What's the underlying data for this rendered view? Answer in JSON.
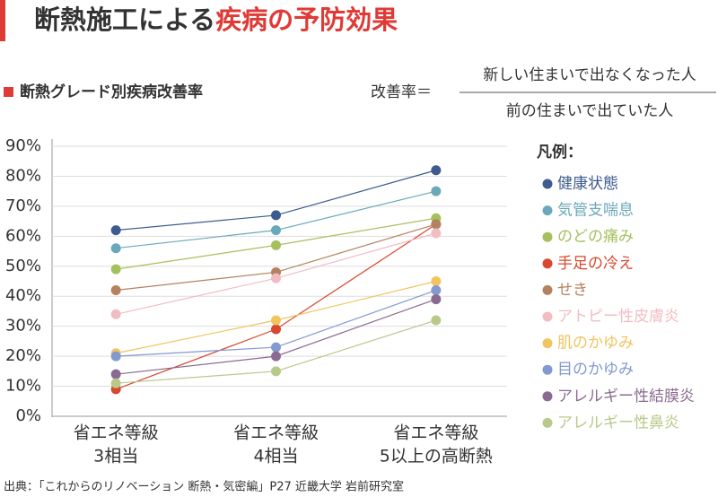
{
  "chart_data": {
    "type": "line",
    "title": [
      "断熱施工による",
      "疾病の予防効果"
    ],
    "subtitle": "断熱グレード別疾病改善率",
    "formula": {
      "label": "改善率＝",
      "numerator": "新しい住まいで出なくなった人",
      "denominator": "前の住まいで出ていた人"
    },
    "legend_title": "凡例：",
    "source": "出典：「これからのリノベーション 断熱・気密編」P27 近畿大学 岩前研究室",
    "categories": [
      [
        "省エネ等級",
        "3相当"
      ],
      [
        "省エネ等級",
        "4相当"
      ],
      [
        "省エネ等級",
        "5以上の高断熱"
      ]
    ],
    "ylim": [
      0,
      90
    ],
    "yticks": [
      {
        "value": 0,
        "label": "0%"
      },
      {
        "value": 10,
        "label": "10%"
      },
      {
        "value": 20,
        "label": "20%"
      },
      {
        "value": 30,
        "label": "30%"
      },
      {
        "value": 40,
        "label": "40%"
      },
      {
        "value": 50,
        "label": "50%"
      },
      {
        "value": 60,
        "label": "60%"
      },
      {
        "value": 70,
        "label": "70%"
      },
      {
        "value": 80,
        "label": "80%"
      },
      {
        "value": 90,
        "label": "90%"
      }
    ],
    "grid": true,
    "series": [
      {
        "name": "健康状態",
        "color": "#3d5b8e",
        "values": [
          62,
          67,
          82
        ]
      },
      {
        "name": "気管支喘息",
        "color": "#6aa9b9",
        "values": [
          56,
          62,
          75
        ]
      },
      {
        "name": "のどの痛み",
        "color": "#a6c05e",
        "values": [
          49,
          57,
          66
        ]
      },
      {
        "name": "手足の冷え",
        "color": "#d9482e",
        "values": [
          9,
          29,
          64
        ]
      },
      {
        "name": "せき",
        "color": "#b4825f",
        "values": [
          42,
          48,
          64
        ]
      },
      {
        "name": "アトピー性皮膚炎",
        "color": "#f2bcc3",
        "values": [
          34,
          46,
          61
        ]
      },
      {
        "name": "肌のかゆみ",
        "color": "#f1c45f",
        "values": [
          21,
          32,
          45
        ]
      },
      {
        "name": "目のかゆみ",
        "color": "#8299d1",
        "values": [
          20,
          23,
          42
        ]
      },
      {
        "name": "アレルギー性結膜炎",
        "color": "#8b6a91",
        "values": [
          14,
          20,
          39
        ]
      },
      {
        "name": "アレルギー性鼻炎",
        "color": "#b9c98a",
        "values": [
          11,
          15,
          32
        ]
      }
    ]
  }
}
